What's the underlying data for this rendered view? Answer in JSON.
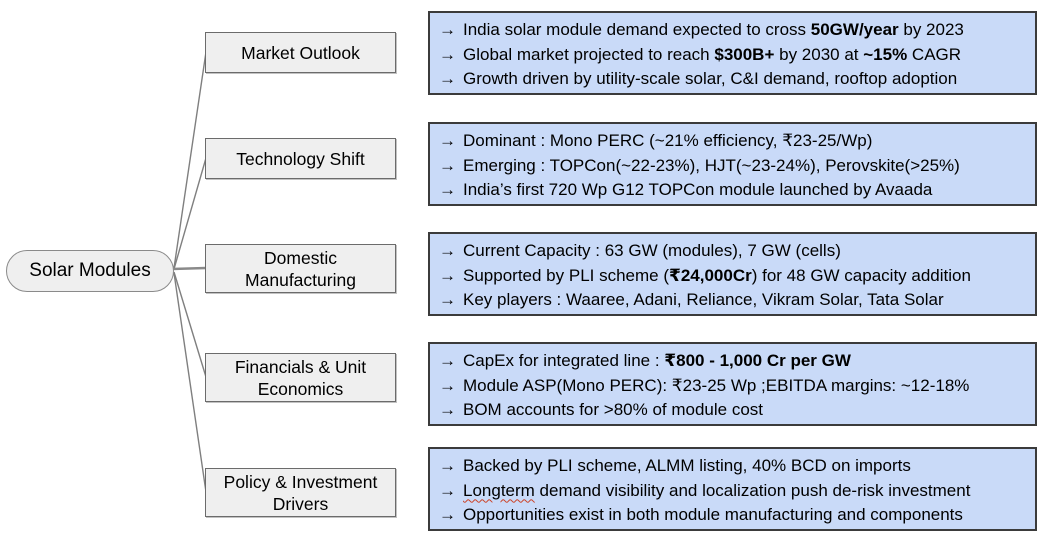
{
  "bullet_glyph": "→",
  "root": {
    "label": "Solar Modules"
  },
  "colors": {
    "detail_fill": "#c9daf8",
    "detail_border": "#3b3b3b",
    "node_fill": "#efefef",
    "node_border": "#6b6b6b",
    "connector": "#7f7f7f",
    "squiggle": "#cc4125",
    "text": "#000000"
  },
  "branches": [
    {
      "label": "Market Outlook",
      "points": [
        {
          "segments": [
            {
              "t": "India solar module demand expected to cross "
            },
            {
              "t": "50GW/year",
              "b": true
            },
            {
              "t": " by 2023"
            }
          ]
        },
        {
          "segments": [
            {
              "t": "Global market projected to reach "
            },
            {
              "t": "$300B+",
              "b": true
            },
            {
              "t": " by 2030 at "
            },
            {
              "t": "~15%",
              "b": true
            },
            {
              "t": " CAGR"
            }
          ]
        },
        {
          "segments": [
            {
              "t": "Growth driven by utility-scale solar, C&I demand, rooftop adoption"
            }
          ]
        }
      ]
    },
    {
      "label": "Technology Shift",
      "points": [
        {
          "segments": [
            {
              "t": "Dominant : Mono PERC (~21% efficiency, ₹23-25/Wp)"
            }
          ]
        },
        {
          "segments": [
            {
              "t": "Emerging : TOPCon(~22-23%), HJT(~23-24%), Perovskite(>25%)"
            }
          ]
        },
        {
          "segments": [
            {
              "t": "India’s first 720 Wp G12 TOPCon module launched by Avaada"
            }
          ]
        }
      ]
    },
    {
      "label": "Domestic Manufacturing",
      "points": [
        {
          "segments": [
            {
              "t": "Current Capacity : 63 GW (modules), 7 GW (cells)"
            }
          ]
        },
        {
          "segments": [
            {
              "t": "Supported by PLI scheme ("
            },
            {
              "t": "₹24,000Cr",
              "b": true
            },
            {
              "t": ") for 48 GW capacity addition"
            }
          ]
        },
        {
          "segments": [
            {
              "t": "Key players : Waaree, Adani, Reliance, Vikram Solar, Tata Solar"
            }
          ]
        }
      ]
    },
    {
      "label": "Financials & Unit Economics",
      "points": [
        {
          "segments": [
            {
              "t": "CapEx for integrated line : "
            },
            {
              "t": "₹800 - 1,000 Cr per GW",
              "b": true
            }
          ]
        },
        {
          "segments": [
            {
              "t": "Module ASP(Mono PERC): ₹23-25 Wp ;EBITDA margins: ~12-18%"
            }
          ]
        },
        {
          "segments": [
            {
              "t": "BOM accounts for >80% of module cost"
            }
          ]
        }
      ]
    },
    {
      "label": "Policy & Investment Drivers",
      "points": [
        {
          "segments": [
            {
              "t": "Backed by PLI scheme, ALMM listing, 40% BCD on imports"
            }
          ]
        },
        {
          "segments": [
            {
              "t": "Longterm",
              "squiggle": true
            },
            {
              "t": " demand visibility and localization push de-risk investment"
            }
          ]
        },
        {
          "segments": [
            {
              "t": "Opportunities exist in both module manufacturing and components"
            }
          ]
        }
      ]
    }
  ]
}
